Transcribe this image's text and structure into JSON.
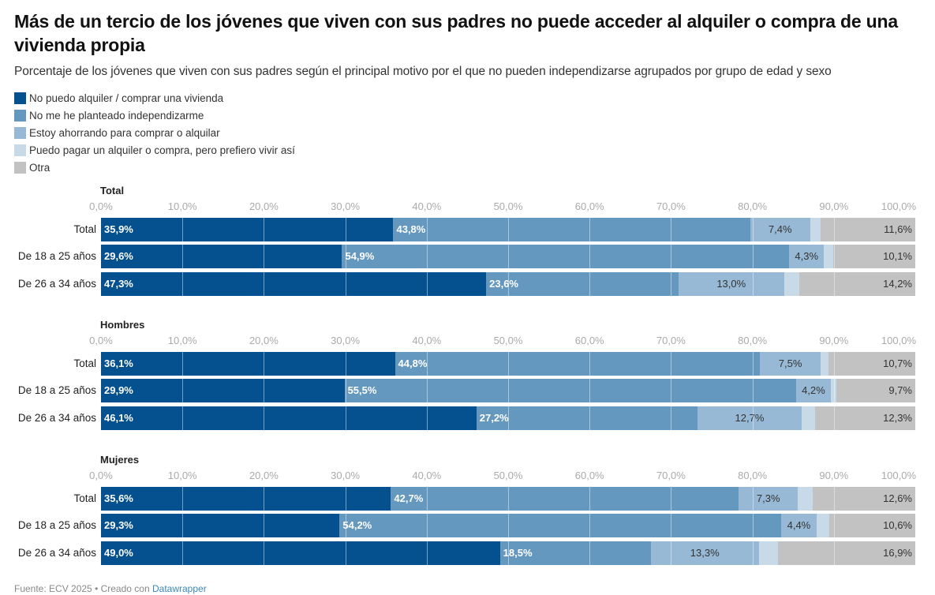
{
  "title": "Más de un tercio de los jóvenes que viven con sus padres no puede acceder al alquiler o compra de una vivienda propia",
  "subtitle": "Porcentaje de los jóvenes que viven con sus padres según el principal motivo por el que no pueden independizarse agrupados por grupo de edad y sexo",
  "footer": {
    "source": "Fuente: ECV 2025 • Creado con ",
    "link": "Datawrapper"
  },
  "chart_data": {
    "type": "bar",
    "orientation": "horizontal-stacked",
    "title": "Más de un tercio de los jóvenes que viven con sus padres no puede acceder al alquiler o compra de una vivienda propia",
    "xlim": [
      0,
      100
    ],
    "ticks": [
      "0,0%",
      "10,0%",
      "20,0%",
      "30,0%",
      "40,0%",
      "50,0%",
      "60,0%",
      "70,0%",
      "80,0%",
      "90,0%",
      "100,0%"
    ],
    "tick_values": [
      0,
      10,
      20,
      30,
      40,
      50,
      60,
      70,
      80,
      90,
      100
    ],
    "legend_placement": "top-left",
    "series": [
      {
        "name": "No puedo alquiler / comprar una vivienda",
        "color": "#05518f",
        "label_style": "dark"
      },
      {
        "name": "No me he planteado independizarme",
        "color": "#6598bf",
        "label_style": "dark"
      },
      {
        "name": "Estoy ahorrando para comprar o alquilar",
        "color": "#97b9d5",
        "label_style": "light"
      },
      {
        "name": "Puedo pagar un alquiler o compra, pero prefiero vivir así",
        "color": "#c8dae8",
        "label_style": "none"
      },
      {
        "name": "Otra",
        "color": "#c2c2c2",
        "label_style": "light-right"
      }
    ],
    "panels": [
      {
        "title": "Total",
        "rows": [
          {
            "label": "Total",
            "values": [
              35.9,
              43.8,
              7.4,
              1.3,
              11.6
            ],
            "labels": [
              "35,9%",
              "43,8%",
              "7,4%",
              "",
              "11,6%"
            ]
          },
          {
            "label": "De 18 a 25 años",
            "values": [
              29.6,
              54.9,
              4.3,
              1.1,
              10.1
            ],
            "labels": [
              "29,6%",
              "54,9%",
              "4,3%",
              "",
              "10,1%"
            ]
          },
          {
            "label": "De 26 a 34 años",
            "values": [
              47.3,
              23.6,
              13.0,
              1.9,
              14.2
            ],
            "labels": [
              "47,3%",
              "23,6%",
              "13,0%",
              "",
              "14,2%"
            ]
          }
        ]
      },
      {
        "title": "Hombres",
        "rows": [
          {
            "label": "Total",
            "values": [
              36.1,
              44.8,
              7.5,
              0.9,
              10.7
            ],
            "labels": [
              "36,1%",
              "44,8%",
              "7,5%",
              "",
              "10,7%"
            ]
          },
          {
            "label": "De 18 a 25 años",
            "values": [
              29.9,
              55.5,
              4.2,
              0.7,
              9.7
            ],
            "labels": [
              "29,9%",
              "55,5%",
              "4,2%",
              "",
              "9,7%"
            ]
          },
          {
            "label": "De 26 a 34 años",
            "values": [
              46.1,
              27.2,
              12.7,
              1.7,
              12.3
            ],
            "labels": [
              "46,1%",
              "27,2%",
              "12,7%",
              "",
              "12,3%"
            ]
          }
        ]
      },
      {
        "title": "Mujeres",
        "rows": [
          {
            "label": "Total",
            "values": [
              35.6,
              42.7,
              7.3,
              1.8,
              12.6
            ],
            "labels": [
              "35,6%",
              "42,7%",
              "7,3%",
              "",
              "12,6%"
            ]
          },
          {
            "label": "De 18 a 25 años",
            "values": [
              29.3,
              54.2,
              4.4,
              1.5,
              10.6
            ],
            "labels": [
              "29,3%",
              "54,2%",
              "4,4%",
              "",
              "10,6%"
            ]
          },
          {
            "label": "De 26 a 34 años",
            "values": [
              49.0,
              18.5,
              13.3,
              2.3,
              16.9
            ],
            "labels": [
              "49,0%",
              "18,5%",
              "13,3%",
              "",
              "16,9%"
            ]
          }
        ]
      }
    ]
  }
}
